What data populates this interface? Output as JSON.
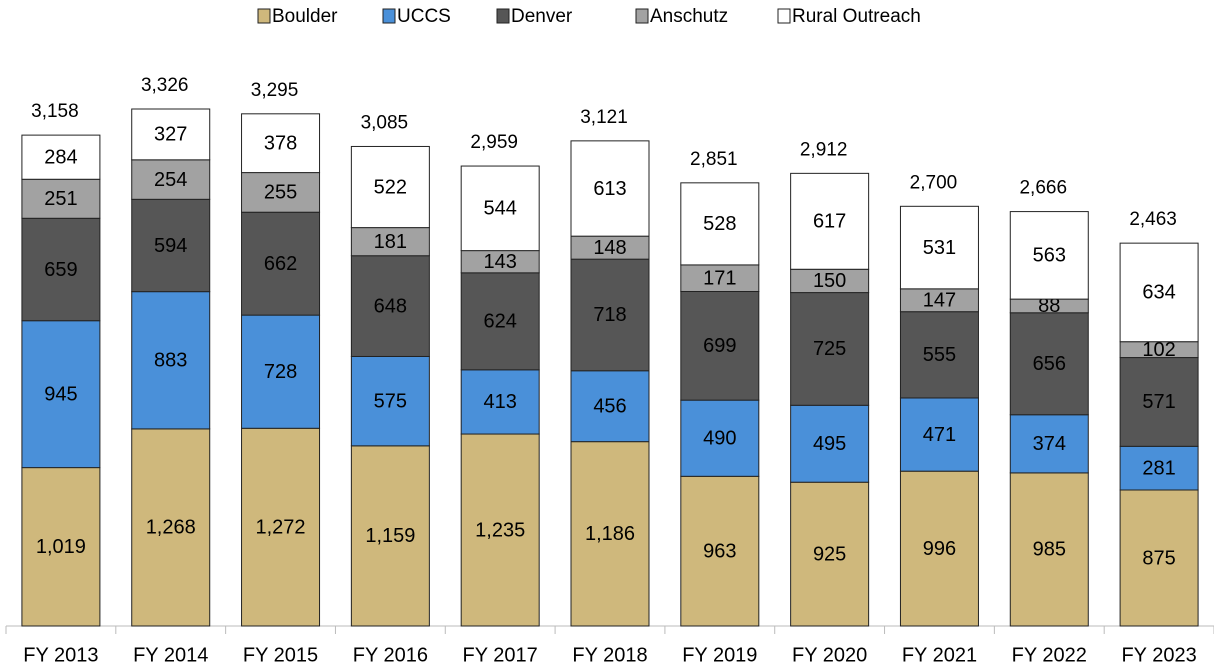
{
  "chart_data": {
    "type": "stacked-bar",
    "categories": [
      "FY 2013",
      "FY 2014",
      "FY 2015",
      "FY 2016",
      "FY 2017",
      "FY 2018",
      "FY 2019",
      "FY 2020",
      "FY 2021",
      "FY 2022",
      "FY 2023"
    ],
    "series": [
      {
        "name": "Boulder",
        "color": "#cfb87c",
        "values": [
          1019,
          1268,
          1272,
          1159,
          1235,
          1186,
          963,
          925,
          996,
          985,
          875
        ],
        "value_labels": [
          "1,019",
          "1,268",
          "1,272",
          "1,159",
          "1,235",
          "1,186",
          "963",
          "925",
          "996",
          "985",
          "875"
        ]
      },
      {
        "name": "UCCS",
        "color": "#4a90d9",
        "values": [
          945,
          883,
          728,
          575,
          413,
          456,
          490,
          495,
          471,
          374,
          281
        ]
      },
      {
        "name": "Denver",
        "color": "#565656",
        "values": [
          659,
          594,
          662,
          648,
          624,
          718,
          699,
          725,
          555,
          656,
          571
        ]
      },
      {
        "name": "Anschutz",
        "color": "#a2a2a2",
        "values": [
          251,
          254,
          255,
          181,
          143,
          148,
          171,
          150,
          147,
          88,
          102
        ]
      },
      {
        "name": "Rural Outreach",
        "color": "#ffffff",
        "values": [
          284,
          327,
          378,
          522,
          544,
          613,
          528,
          617,
          531,
          563,
          634
        ]
      }
    ],
    "totals": [
      3158,
      3326,
      3295,
      3085,
      2959,
      3121,
      2851,
      2912,
      2700,
      2666,
      2463
    ],
    "total_labels": [
      "3,158",
      "3,326",
      "3,295",
      "3,085",
      "2,959",
      "3,121",
      "2,851",
      "2,912",
      "2,700",
      "2,666",
      "2,463"
    ],
    "legend": "top"
  }
}
